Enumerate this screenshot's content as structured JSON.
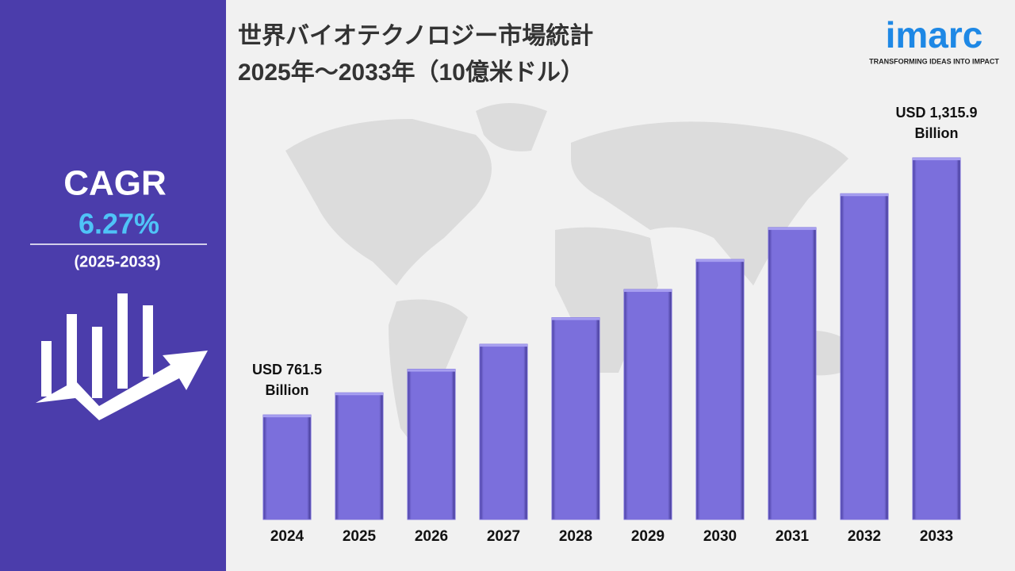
{
  "chart_data": {
    "type": "bar",
    "title": "世界バイオテクノロジー市場統計",
    "subtitle": "2025年～2033年（10億米ドル）",
    "categories": [
      "2024",
      "2025",
      "2026",
      "2027",
      "2028",
      "2029",
      "2030",
      "2031",
      "2032",
      "2033"
    ],
    "values": [
      761.5,
      809.2,
      860.0,
      913.9,
      971.2,
      1032.0,
      1096.8,
      1165.6,
      1238.6,
      1315.9
    ],
    "value_labels": [
      "USD 761.5\nBillion",
      null,
      null,
      null,
      null,
      null,
      null,
      null,
      null,
      "USD 1,315.9\nBillion"
    ],
    "color": "#7b6fdc",
    "ylim": [
      536,
      1316
    ]
  },
  "cagr": {
    "label": "CAGR",
    "value": "6.27%",
    "period": "(2025-2033)"
  },
  "logo": {
    "name": "imarc",
    "tagline": "TRANSFORMING IDEAS INTO IMPACT"
  }
}
